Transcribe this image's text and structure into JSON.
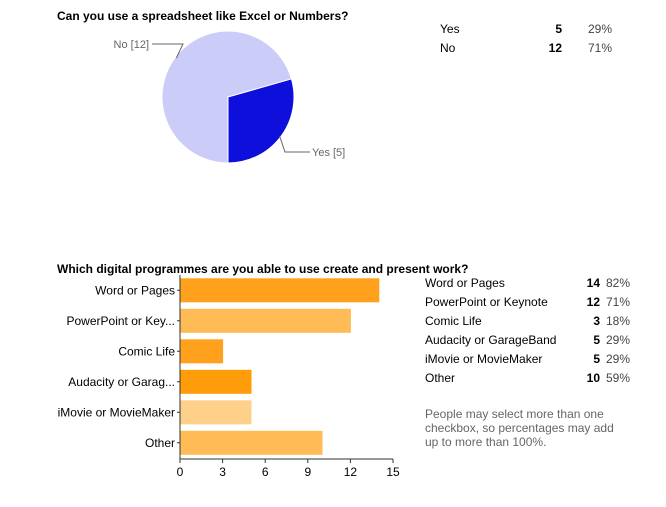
{
  "q1": {
    "title": "Can you use a spreadsheet like Excel or Numbers?",
    "rows": [
      {
        "label": "Yes",
        "count": "5",
        "pct": "29%"
      },
      {
        "label": "No",
        "count": "12",
        "pct": "71%"
      }
    ]
  },
  "q2": {
    "title": "Which digital programmes are you able to use create and present work?",
    "rows": [
      {
        "label": "Word or Pages",
        "count": "14",
        "pct": "82%"
      },
      {
        "label": "PowerPoint or Keynote",
        "count": "12",
        "pct": "71%"
      },
      {
        "label": "Comic Life",
        "count": "3",
        "pct": "18%"
      },
      {
        "label": "Audacity or GarageBand",
        "count": "5",
        "pct": "29%"
      },
      {
        "label": "iMovie or MovieMaker",
        "count": "5",
        "pct": "29%"
      },
      {
        "label": "Other",
        "count": "10",
        "pct": "59%"
      }
    ],
    "note": "People may select more than one checkbox, so percentages may add up to more than 100%."
  },
  "chart_data": [
    {
      "type": "pie",
      "categories": [
        "No [12]",
        "Yes [5]"
      ],
      "values": [
        12,
        5
      ],
      "colors": [
        "#ccccf8",
        "#0f0fdc"
      ]
    },
    {
      "type": "bar",
      "orientation": "horizontal",
      "categories": [
        "Word or Pages",
        "PowerPoint or Key...",
        "Comic Life",
        "Audacity or Garag...",
        "iMovie or MovieMaker",
        "Other"
      ],
      "values": [
        14,
        12,
        3,
        5,
        5,
        10
      ],
      "colors": [
        "#ffa11c",
        "#ffbb55",
        "#ffa11c",
        "#ff9c0a",
        "#ffd08a",
        "#ffbb55"
      ],
      "xlim": [
        0,
        15
      ],
      "xticks": [
        "0",
        "3",
        "6",
        "9",
        "12",
        "15"
      ]
    }
  ]
}
